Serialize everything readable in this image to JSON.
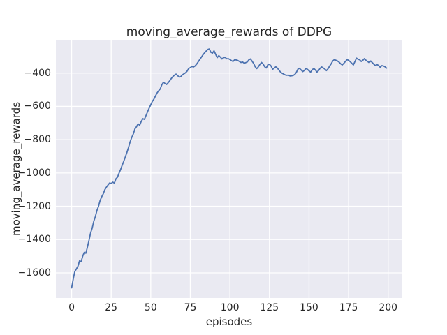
{
  "chart_data": {
    "type": "line",
    "title": "moving_average_rewards of DDPG",
    "xlabel": "episodes",
    "ylabel": "moving_average_rewards",
    "x_ticks": [
      0,
      25,
      50,
      75,
      100,
      125,
      150,
      175,
      200
    ],
    "y_ticks": [
      -400,
      -600,
      -800,
      -1000,
      -1200,
      -1400,
      -1600
    ],
    "xlim": [
      -9.95,
      208.95
    ],
    "ylim": [
      -1751,
      -204
    ],
    "grid": true,
    "legend": false,
    "style": "seaborn-darkgrid",
    "colors": {
      "figure_background": "#ffffff",
      "axes_background": "#eaeaf2",
      "gridline": "#ffffff",
      "text": "#262626",
      "line": "#4c72b0"
    },
    "series": [
      {
        "name": "moving_average_rewards",
        "color": "#4c72b0",
        "x_start": 0,
        "x_step": 1,
        "values": [
          -1690,
          -1638,
          -1592,
          -1577,
          -1560,
          -1528,
          -1533,
          -1500,
          -1477,
          -1482,
          -1445,
          -1404,
          -1360,
          -1331,
          -1290,
          -1262,
          -1225,
          -1200,
          -1165,
          -1143,
          -1125,
          -1100,
          -1085,
          -1072,
          -1060,
          -1063,
          -1055,
          -1061,
          -1035,
          -1025,
          -1000,
          -978,
          -952,
          -928,
          -902,
          -875,
          -845,
          -812,
          -786,
          -765,
          -735,
          -722,
          -705,
          -713,
          -690,
          -674,
          -678,
          -655,
          -632,
          -610,
          -590,
          -570,
          -556,
          -537,
          -519,
          -506,
          -495,
          -470,
          -455,
          -462,
          -468,
          -458,
          -446,
          -432,
          -421,
          -412,
          -406,
          -415,
          -424,
          -421,
          -410,
          -404,
          -398,
          -388,
          -372,
          -367,
          -360,
          -363,
          -357,
          -346,
          -332,
          -318,
          -304,
          -290,
          -278,
          -268,
          -258,
          -255,
          -275,
          -280,
          -266,
          -287,
          -307,
          -295,
          -304,
          -315,
          -307,
          -305,
          -314,
          -313,
          -318,
          -325,
          -330,
          -320,
          -321,
          -324,
          -330,
          -336,
          -333,
          -340,
          -337,
          -333,
          -320,
          -315,
          -328,
          -342,
          -362,
          -373,
          -362,
          -347,
          -336,
          -345,
          -362,
          -369,
          -350,
          -347,
          -357,
          -377,
          -370,
          -362,
          -370,
          -382,
          -394,
          -401,
          -406,
          -411,
          -413,
          -412,
          -417,
          -416,
          -414,
          -408,
          -396,
          -376,
          -371,
          -381,
          -391,
          -385,
          -372,
          -377,
          -387,
          -394,
          -381,
          -371,
          -381,
          -394,
          -385,
          -371,
          -363,
          -369,
          -376,
          -385,
          -374,
          -358,
          -344,
          -327,
          -319,
          -323,
          -327,
          -334,
          -344,
          -351,
          -341,
          -330,
          -319,
          -323,
          -331,
          -341,
          -351,
          -331,
          -310,
          -317,
          -320,
          -330,
          -323,
          -313,
          -323,
          -330,
          -337,
          -327,
          -337,
          -347,
          -355,
          -348,
          -355,
          -365,
          -355,
          -357,
          -362,
          -370
        ]
      }
    ]
  }
}
